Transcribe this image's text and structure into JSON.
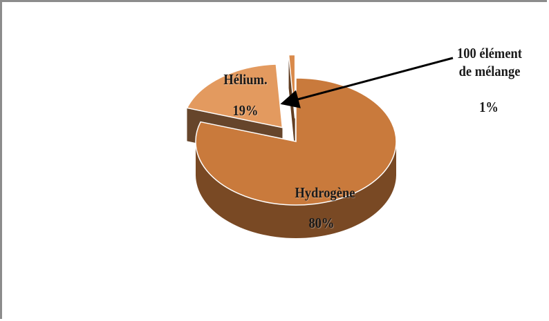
{
  "chart_data": {
    "type": "pie",
    "categories": [
      "Hydrogène",
      "Hélium.",
      "100 élément de mélange"
    ],
    "values": [
      80,
      19,
      1
    ],
    "value_labels": [
      "80%",
      "19%",
      "1%"
    ],
    "colors": [
      "#c97a3c",
      "#e39a5f",
      "#d98a4b"
    ]
  }
}
